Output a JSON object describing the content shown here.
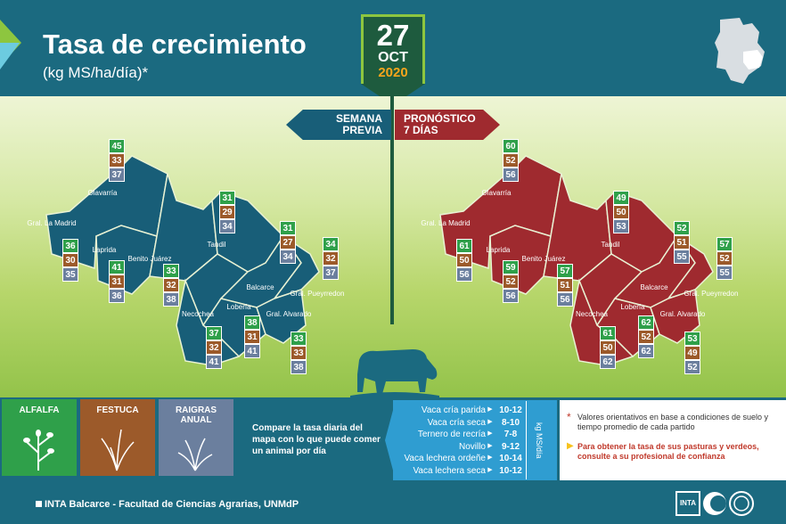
{
  "header": {
    "title": "Tasa de crecimiento",
    "subtitle": "(kg MS/ha/día)*",
    "date_day": "27",
    "date_month": "OCT",
    "date_year": "2020"
  },
  "tags": {
    "left_line1": "SEMANA",
    "left_line2": "PREVIA",
    "right_line1": "PRONÓSTICO",
    "right_line2": "7 DÍAS"
  },
  "colors": {
    "header": "#1b6a80",
    "map_previous": "#185e78",
    "map_forecast": "#9f2a2f",
    "alfalfa": "#2fa04a",
    "festuca": "#9c5a2a",
    "raigras": "#6b7f9e",
    "year": "#f7a51c"
  },
  "previous_week": [
    {
      "district": "Olavarría",
      "alfalfa": "45",
      "festuca": "33",
      "raigras": "37"
    },
    {
      "district": "Gral. La Madrid",
      "alfalfa": "36",
      "festuca": "30",
      "raigras": "35"
    },
    {
      "district": "Laprida",
      "alfalfa": "41",
      "festuca": "31",
      "raigras": "36"
    },
    {
      "district": "Benito Juárez",
      "alfalfa": "33",
      "festuca": "32",
      "raigras": "38"
    },
    {
      "district": "Tandil",
      "alfalfa": "31",
      "festuca": "29",
      "raigras": "34"
    },
    {
      "district": "Balcarce",
      "alfalfa": "31",
      "festuca": "27",
      "raigras": "34"
    },
    {
      "district": "Gral. Pueyrredon",
      "alfalfa": "34",
      "festuca": "32",
      "raigras": "37"
    },
    {
      "district": "Lobería",
      "alfalfa": "38",
      "festuca": "31",
      "raigras": "41"
    },
    {
      "district": "Necochea",
      "alfalfa": "37",
      "festuca": "32",
      "raigras": "41"
    },
    {
      "district": "Gral. Alvarado",
      "alfalfa": "33",
      "festuca": "33",
      "raigras": "38"
    }
  ],
  "forecast": [
    {
      "district": "Olavarría",
      "alfalfa": "60",
      "festuca": "52",
      "raigras": "56"
    },
    {
      "district": "Gral. La Madrid",
      "alfalfa": "61",
      "festuca": "50",
      "raigras": "56"
    },
    {
      "district": "Laprida",
      "alfalfa": "59",
      "festuca": "52",
      "raigras": "56"
    },
    {
      "district": "Benito Juárez",
      "alfalfa": "57",
      "festuca": "51",
      "raigras": "56"
    },
    {
      "district": "Tandil",
      "alfalfa": "49",
      "festuca": "50",
      "raigras": "53"
    },
    {
      "district": "Balcarce",
      "alfalfa": "52",
      "festuca": "51",
      "raigras": "55"
    },
    {
      "district": "Gral. Pueyrredon",
      "alfalfa": "57",
      "festuca": "52",
      "raigras": "55"
    },
    {
      "district": "Lobería",
      "alfalfa": "62",
      "festuca": "52",
      "raigras": "62"
    },
    {
      "district": "Necochea",
      "alfalfa": "61",
      "festuca": "50",
      "raigras": "62"
    },
    {
      "district": "Gral. Alvarado",
      "alfalfa": "53",
      "festuca": "49",
      "raigras": "52"
    }
  ],
  "legend": {
    "alfalfa": "ALFALFA",
    "festuca": "FESTUCA",
    "raigras_line1": "RAIGRAS",
    "raigras_line2": "ANUAL",
    "compare_text": "Compare la tasa diaria del mapa con lo que puede comer un animal por día"
  },
  "consumption_table": {
    "unit": "kg MS/día",
    "rows": [
      {
        "label": "Vaca cría parida",
        "value": "10-12"
      },
      {
        "label": "Vaca cría seca",
        "value": "8-10"
      },
      {
        "label": "Ternero de recría",
        "value": "7-8"
      },
      {
        "label": "Novillo",
        "value": "9-12"
      },
      {
        "label": "Vaca lechera ordeñe",
        "value": "10-14"
      },
      {
        "label": "Vaca lechera seca",
        "value": "10-12"
      }
    ]
  },
  "notes": {
    "note1": "Valores orientativos en base a condiciones de suelo y tiempo promedio de cada partido",
    "note2": "Para obtener la tasa de sus pasturas y verdeos, consulte a su profesional de confianza"
  },
  "footer": {
    "text": "INTA Balcarce - Facultad de Ciencias Agrarias, UNMdP",
    "logo_inta": "INTA"
  }
}
